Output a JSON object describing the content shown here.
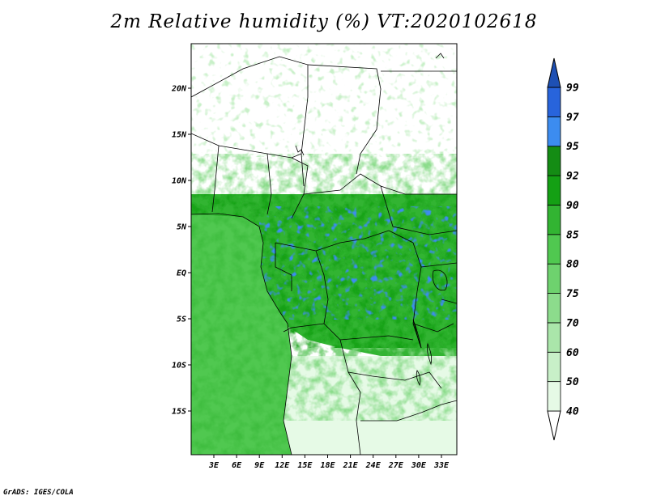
{
  "title": "2m Relative humidity (%) VT:2020102618",
  "lat_labels": [
    "20N",
    "15N",
    "10N",
    "5N",
    "EQ",
    "5S",
    "10S",
    "15S"
  ],
  "lon_labels": [
    "3E",
    "6E",
    "9E",
    "12E",
    "15E",
    "18E",
    "21E",
    "24E",
    "27E",
    "30E",
    "33E"
  ],
  "colorbar": {
    "levels": [
      "40",
      "50",
      "60",
      "70",
      "75",
      "80",
      "85",
      "90",
      "92",
      "95",
      "97",
      "99"
    ],
    "colors": [
      "#ffffff",
      "#e6fae6",
      "#c8f0c8",
      "#aae6aa",
      "#8cdc8c",
      "#6ed26e",
      "#50c850",
      "#32b432",
      "#14a014",
      "#148c14",
      "#3c8cf0",
      "#2864dc",
      "#1e50b4"
    ]
  },
  "credit": "GrADS: IGES/COLA"
}
